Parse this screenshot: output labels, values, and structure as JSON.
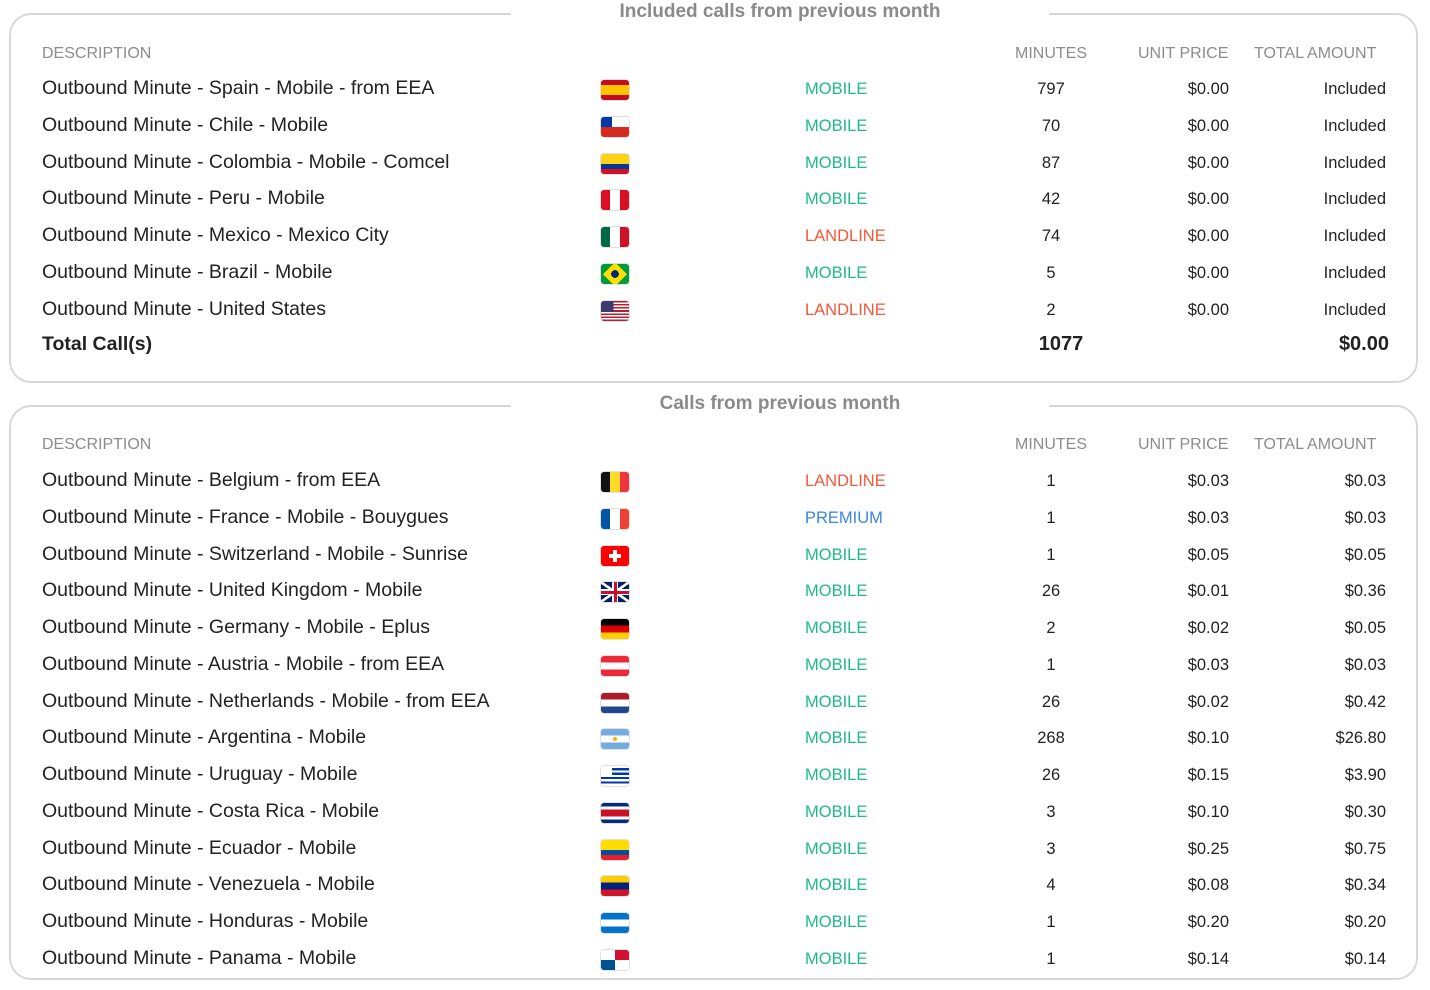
{
  "colors": {
    "MOBILE": "#1dba8a",
    "LANDLINE": "#f4583a",
    "PREMIUM": "#3b86e0"
  },
  "headers": {
    "description": "DESCRIPTION",
    "minutes": "MINUTES",
    "unit_price": "UNIT PRICE",
    "total_amount": "TOTAL AMOUNT"
  },
  "included": {
    "title": "Included calls from previous month",
    "rows": [
      {
        "description": "Outbound Minute - Spain - Mobile - from EEA",
        "flag": "es",
        "type": "MOBILE",
        "minutes": "797",
        "unit_price": "$0.00",
        "total": "Included"
      },
      {
        "description": "Outbound Minute - Chile - Mobile",
        "flag": "cl",
        "type": "MOBILE",
        "minutes": "70",
        "unit_price": "$0.00",
        "total": "Included"
      },
      {
        "description": "Outbound Minute - Colombia - Mobile - Comcel",
        "flag": "co",
        "type": "MOBILE",
        "minutes": "87",
        "unit_price": "$0.00",
        "total": "Included"
      },
      {
        "description": "Outbound Minute - Peru - Mobile",
        "flag": "pe",
        "type": "MOBILE",
        "minutes": "42",
        "unit_price": "$0.00",
        "total": "Included"
      },
      {
        "description": "Outbound Minute - Mexico - Mexico City",
        "flag": "mx",
        "type": "LANDLINE",
        "minutes": "74",
        "unit_price": "$0.00",
        "total": "Included"
      },
      {
        "description": "Outbound Minute - Brazil - Mobile",
        "flag": "br",
        "type": "MOBILE",
        "minutes": "5",
        "unit_price": "$0.00",
        "total": "Included"
      },
      {
        "description": "Outbound Minute - United States",
        "flag": "us",
        "type": "LANDLINE",
        "minutes": "2",
        "unit_price": "$0.00",
        "total": "Included"
      }
    ],
    "total": {
      "label": "Total Call(s)",
      "minutes": "1077",
      "amount": "$0.00"
    }
  },
  "calls": {
    "title": "Calls from previous month",
    "rows": [
      {
        "description": "Outbound Minute - Belgium - from EEA",
        "flag": "be",
        "type": "LANDLINE",
        "minutes": "1",
        "unit_price": "$0.03",
        "total": "$0.03"
      },
      {
        "description": "Outbound Minute - France - Mobile - Bouygues",
        "flag": "fr",
        "type": "PREMIUM",
        "minutes": "1",
        "unit_price": "$0.03",
        "total": "$0.03"
      },
      {
        "description": "Outbound Minute - Switzerland - Mobile - Sunrise",
        "flag": "ch",
        "type": "MOBILE",
        "minutes": "1",
        "unit_price": "$0.05",
        "total": "$0.05"
      },
      {
        "description": "Outbound Minute - United Kingdom - Mobile",
        "flag": "gb",
        "type": "MOBILE",
        "minutes": "26",
        "unit_price": "$0.01",
        "total": "$0.36"
      },
      {
        "description": "Outbound Minute - Germany - Mobile - Eplus",
        "flag": "de",
        "type": "MOBILE",
        "minutes": "2",
        "unit_price": "$0.02",
        "total": "$0.05"
      },
      {
        "description": "Outbound Minute - Austria - Mobile - from EEA",
        "flag": "at",
        "type": "MOBILE",
        "minutes": "1",
        "unit_price": "$0.03",
        "total": "$0.03"
      },
      {
        "description": "Outbound Minute - Netherlands - Mobile - from EEA",
        "flag": "nl",
        "type": "MOBILE",
        "minutes": "26",
        "unit_price": "$0.02",
        "total": "$0.42"
      },
      {
        "description": "Outbound Minute - Argentina - Mobile",
        "flag": "ar",
        "type": "MOBILE",
        "minutes": "268",
        "unit_price": "$0.10",
        "total": "$26.80"
      },
      {
        "description": "Outbound Minute - Uruguay - Mobile",
        "flag": "uy",
        "type": "MOBILE",
        "minutes": "26",
        "unit_price": "$0.15",
        "total": "$3.90"
      },
      {
        "description": "Outbound Minute - Costa Rica - Mobile",
        "flag": "cr",
        "type": "MOBILE",
        "minutes": "3",
        "unit_price": "$0.10",
        "total": "$0.30"
      },
      {
        "description": "Outbound Minute - Ecuador - Mobile",
        "flag": "ec",
        "type": "MOBILE",
        "minutes": "3",
        "unit_price": "$0.25",
        "total": "$0.75"
      },
      {
        "description": "Outbound Minute - Venezuela - Mobile",
        "flag": "ve",
        "type": "MOBILE",
        "minutes": "4",
        "unit_price": "$0.08",
        "total": "$0.34"
      },
      {
        "description": "Outbound Minute - Honduras - Mobile",
        "flag": "hn",
        "type": "MOBILE",
        "minutes": "1",
        "unit_price": "$0.20",
        "total": "$0.20"
      },
      {
        "description": "Outbound Minute - Panama - Mobile",
        "flag": "pa",
        "type": "MOBILE",
        "minutes": "1",
        "unit_price": "$0.14",
        "total": "$0.14"
      }
    ]
  }
}
